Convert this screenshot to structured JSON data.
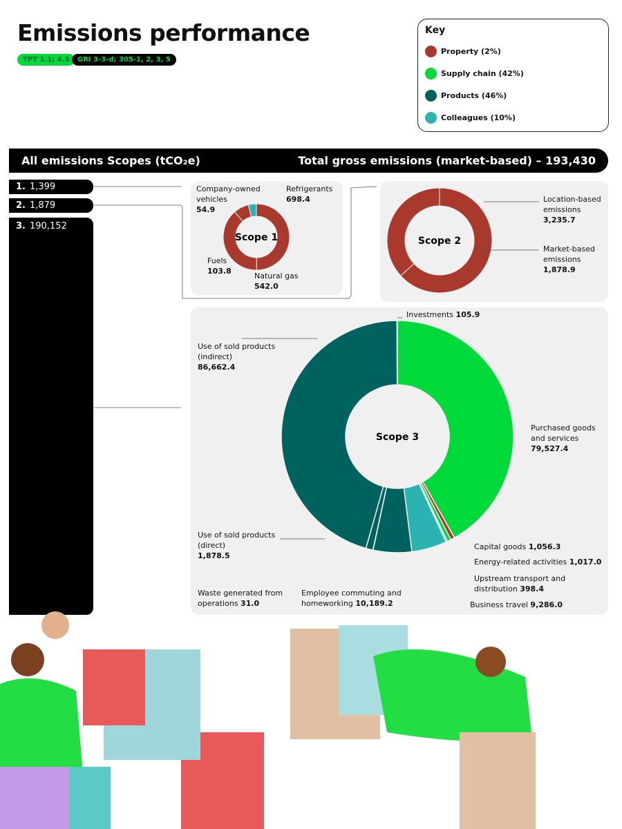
{
  "title": "Emissions performance",
  "tags": [
    "TPT 1.1; 4.3",
    "GRI 3-3-d; 305-1, 2, 3, 5"
  ],
  "key": {
    "title": "Key",
    "items": [
      {
        "label": "Property (2%)",
        "color": "#a8392c"
      },
      {
        "label": "Supply chain (42%)",
        "color": "#00d93a"
      },
      {
        "label": "Products (46%)",
        "color": "#00625e"
      },
      {
        "label": "Colleagues (10%)",
        "color": "#2bb3b1"
      }
    ]
  },
  "header": {
    "left": "All emissions Scopes (tCO₂e)",
    "right": "Total gross emissions (market-based) – 193,430"
  },
  "scopes": [
    {
      "num": "1.",
      "value": "1,399"
    },
    {
      "num": "2.",
      "value": "1,879"
    },
    {
      "num": "3.",
      "value": "190,152"
    }
  ],
  "chart_data": [
    {
      "type": "donut",
      "title": "Scope 1",
      "segments": [
        {
          "name": "Refrigerants",
          "value": 698.4,
          "display": "698.4",
          "color": "#a8392c"
        },
        {
          "name": "Natural gas",
          "value": 542.0,
          "display": "542.0",
          "color": "#a8392c"
        },
        {
          "name": "Fuels",
          "value": 103.8,
          "display": "103.8",
          "color": "#a8392c"
        },
        {
          "name": "Company-owned vehicles",
          "value": 54.9,
          "display": "54.9",
          "color": "#2bb3b1"
        }
      ]
    },
    {
      "type": "donut",
      "title": "Scope 2",
      "segments": [
        {
          "name": "Location-based emissions",
          "value": 3235.7,
          "display": "3,235.7",
          "color": "#a8392c"
        },
        {
          "name": "Market-based emissions",
          "value": 1878.9,
          "display": "1,878.9",
          "color": "#a8392c"
        }
      ]
    },
    {
      "type": "donut",
      "title": "Scope 3",
      "segments": [
        {
          "name": "Purchased goods and services",
          "value": 79527.4,
          "display": "79,527.4",
          "color": "#00d93a"
        },
        {
          "name": "Capital goods",
          "value": 1056.3,
          "display": "1,056.3",
          "color": "#a8392c"
        },
        {
          "name": "Energy-related activities",
          "value": 1017.0,
          "display": "1,017.0",
          "color": "#00d93a"
        },
        {
          "name": "Upstream transport and distribution",
          "value": 398.4,
          "display": "398.4",
          "color": "#2bb3b1"
        },
        {
          "name": "Business travel",
          "value": 9286.0,
          "display": "9,286.0",
          "color": "#2bb3b1"
        },
        {
          "name": "Employee commuting and homeworking",
          "value": 10189.2,
          "display": "10,189.2",
          "color": "#00625e"
        },
        {
          "name": "Waste generated from operations",
          "value": 31.0,
          "display": "31.0",
          "color": "#00625e"
        },
        {
          "name": "Use of sold products (direct)",
          "value": 1878.5,
          "display": "1,878.5",
          "color": "#00625e"
        },
        {
          "name": "Use of sold products (indirect)",
          "value": 86662.4,
          "display": "86,662.4",
          "color": "#00625e"
        },
        {
          "name": "Investments",
          "value": 105.9,
          "display": "105.9",
          "color": "#00625e"
        }
      ]
    }
  ]
}
